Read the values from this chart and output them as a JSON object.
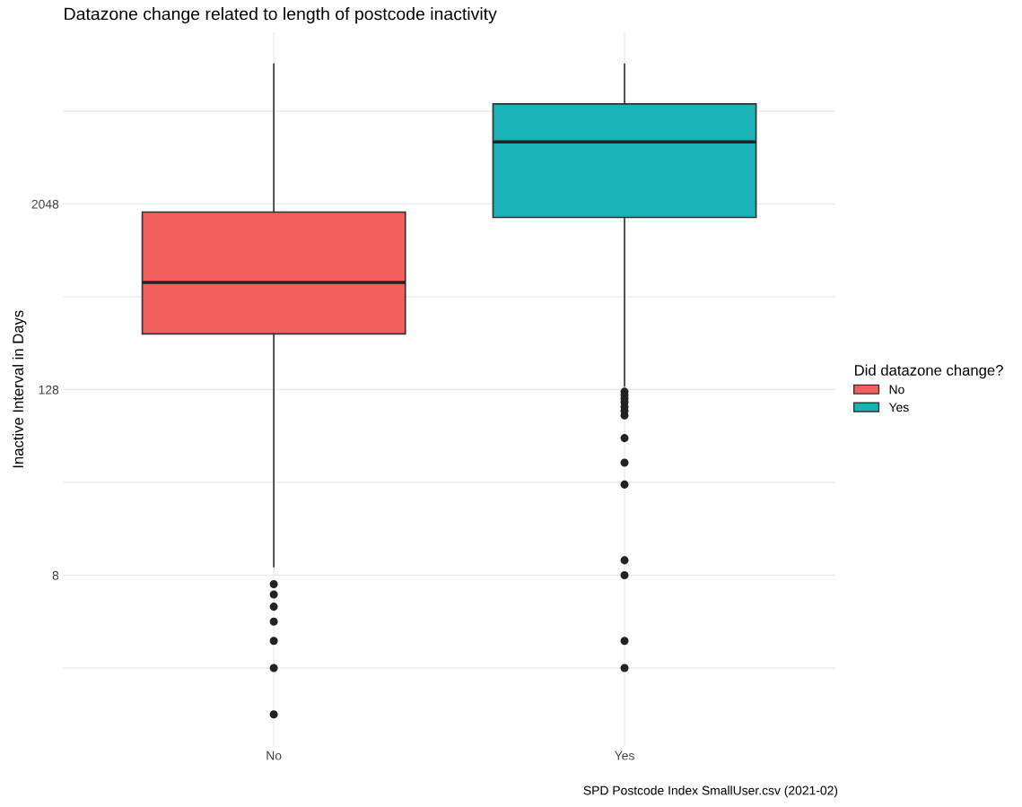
{
  "chart_data": {
    "type": "box",
    "title": "Datazone change related to length of postcode inactivity",
    "ylabel": "Inactive Interval in Days",
    "legend_title": "Did datazone change?",
    "legend": "right",
    "grid": true,
    "log": "y",
    "categories": [
      "No",
      "Yes"
    ],
    "series": [
      {
        "name": "No",
        "color": "#f25f5c",
        "boxes": [
          {
            "low": 9.1,
            "q1": 294,
            "median": 635,
            "q3": 1814,
            "high": 16500,
            "outliers": [
              7,
              6,
              5,
              4,
              3,
              2,
              1
            ]
          },
          null
        ]
      },
      {
        "name": "Yes",
        "color": "#19b2b6",
        "boxes": [
          null,
          {
            "low": 135,
            "q1": 1675,
            "median": 5180,
            "q3": 9120,
            "high": 16500,
            "outliers": [
              124,
              118,
              112,
              106,
              99,
              93,
              87,
              62,
              43,
              31,
              10,
              8,
              3,
              2
            ]
          }
        ]
      }
    ],
    "ylim": [
      0.62,
      26600
    ],
    "yticks": [
      {
        "value": 2,
        "label": null
      },
      8,
      {
        "value": 32,
        "label": null
      },
      128,
      {
        "value": 512,
        "label": null
      },
      2048,
      {
        "value": 8192,
        "label": null
      }
    ],
    "annotations": [
      "SPD Postcode Index SmallUser.csv (2021-02)"
    ]
  }
}
